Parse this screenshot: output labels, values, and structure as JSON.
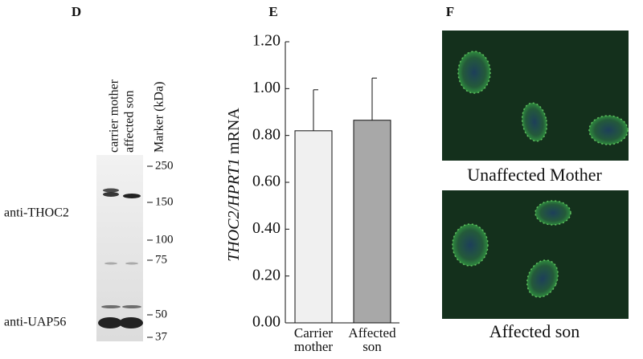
{
  "panel_d": {
    "label": "D",
    "lanes": [
      "carrier mother",
      "affected son"
    ],
    "marker_title": "Marker (kDa)",
    "markers": [
      250,
      150,
      100,
      75,
      50,
      37
    ],
    "antibodies": [
      "anti-THOC2",
      "anti-UAP56"
    ]
  },
  "chart_data": {
    "type": "bar",
    "panel_label": "E",
    "ylabel_italic": "THOC2/HPRT1",
    "ylabel": "mRNA",
    "categories": [
      "Carrier mother",
      "Affected son"
    ],
    "values": [
      0.82,
      0.865
    ],
    "errors": [
      0.175,
      0.18
    ],
    "colors": [
      "#f0f0f0",
      "#a8a8a8"
    ],
    "ylim": [
      0,
      1.2
    ],
    "yticks": [
      {
        "value": 0,
        "label": "0.00"
      },
      {
        "value": 0.2,
        "label": "0.20"
      },
      {
        "value": 0.4,
        "label": "0.40"
      },
      {
        "value": 0.6,
        "label": "0.60"
      },
      {
        "value": 0.8,
        "label": "0.80"
      },
      {
        "value": 1.0,
        "label": "1.00"
      },
      {
        "value": 1.2,
        "label": "1.20"
      }
    ]
  },
  "panel_f": {
    "label": "F",
    "captions": [
      "Unaffected Mother",
      "Affected son"
    ]
  }
}
